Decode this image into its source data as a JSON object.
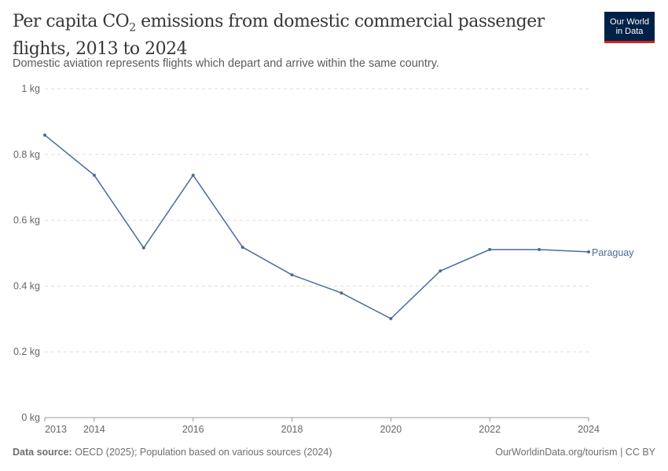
{
  "header": {
    "title_pre": "Per capita CO",
    "title_sub": "2",
    "title_post": " emissions from domestic commercial passenger flights, 2013 to 2024",
    "subtitle": "Domestic aviation represents flights which depart and arrive within the same country.",
    "logo": "Our World in Data"
  },
  "footer": {
    "source_label": "Data source:",
    "source": "OECD (2025); Population based on various sources (2024)",
    "credit": "OurWorldinData.org/tourism | CC BY"
  },
  "colors": {
    "series": "#4c6a9c",
    "grid": "#dddddd",
    "logo_bg": "#002147",
    "logo_accent": "#ce261e"
  },
  "chart_data": {
    "type": "line",
    "title": "Per capita CO2 emissions from domestic commercial passenger flights, 2013 to 2024",
    "x": [
      2013,
      2014,
      2015,
      2016,
      2017,
      2018,
      2019,
      2020,
      2021,
      2022,
      2023,
      2024
    ],
    "series": [
      {
        "name": "Paraguay",
        "values": [
          0.859,
          0.737,
          0.516,
          0.737,
          0.518,
          0.434,
          0.379,
          0.301,
          0.446,
          0.511,
          0.511,
          0.504
        ]
      }
    ],
    "xlim": [
      2013,
      2024
    ],
    "ylim": [
      0,
      1
    ],
    "yticks": [
      0,
      0.2,
      0.4,
      0.6,
      0.8,
      1
    ],
    "ytick_labels": [
      "0 kg",
      "0.2 kg",
      "0.4 kg",
      "0.6 kg",
      "0.8 kg",
      "1 kg"
    ],
    "xticks": [
      2013,
      2014,
      2016,
      2018,
      2020,
      2022,
      2024
    ],
    "xtick_labels": [
      "2013",
      "2014",
      "2016",
      "2018",
      "2020",
      "2022",
      "2024"
    ],
    "grid": "horizontal dashed",
    "legend": "inline-right"
  }
}
